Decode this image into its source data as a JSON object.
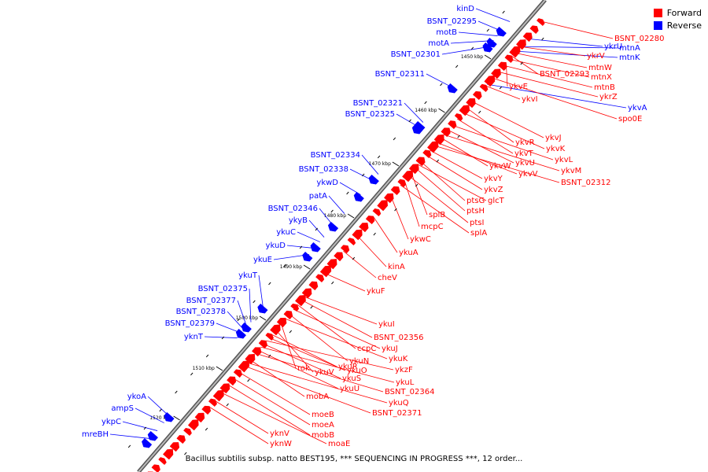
{
  "legend": {
    "forward_label": "Forward",
    "reverse_label": "Reverse",
    "forward_color": "#ff0000",
    "reverse_color": "#0000ff"
  },
  "caption": "Bacillus subtilis subsp. natto BEST195, *** SEQUENCING IN PROGRESS ***, 12 order...",
  "axis_ticks": [
    "1450 kbp",
    "1460 kbp",
    "1470 kbp",
    "1480 kbp",
    "1490 kbp",
    "1500 kbp",
    "1510 kbp",
    "1520 kbp"
  ],
  "reverse_genes": [
    "kinD",
    "BSNT_02295",
    "motB",
    "motA",
    "BSNT_02301",
    "BSNT_02311",
    "BSNT_02321",
    "BSNT_02325",
    "BSNT_02334",
    "BSNT_02338",
    "ykwD",
    "patA",
    "BSNT_02346",
    "ykyB",
    "ykuC",
    "ykuD",
    "ykuE",
    "ykuT",
    "BSNT_02375",
    "BSNT_02377",
    "BSNT_02378",
    "BSNT_02379",
    "yknT",
    "ykoA",
    "ampS",
    "ykpC",
    "mreBH",
    "ykrU",
    "mtnA",
    "mtnK",
    "ykvA"
  ],
  "forward_genes": [
    "BSNT_02280",
    "ykrV",
    "mtnW",
    "BSNT_02293",
    "mtnX",
    "mtnB",
    "ykrZ",
    "spo0E",
    "ykvE",
    "ykvI",
    "ykvJ",
    "ykvR",
    "ykvK",
    "ykvT",
    "ykvL",
    "ykvU",
    "ykvM",
    "ykvW",
    "ykvV",
    "BSNT_02312",
    "ykvY",
    "ykvZ",
    "ptsG",
    "glcT",
    "ptsH",
    "splB",
    "mcpC",
    "ptsI",
    "splA",
    "ykwC",
    "ykuA",
    "kinA",
    "cheV",
    "ykuF",
    "ykuI",
    "BSNT_02356",
    "ccpC",
    "ykuJ",
    "ykuN",
    "ykuK",
    "rok",
    "ykuV",
    "ykuR",
    "ykuO",
    "ykzF",
    "ykuS",
    "ykuL",
    "ykuU",
    "BSNT_02364",
    "mobA",
    "ykuQ",
    "BSNT_02371",
    "moeB",
    "moeA",
    "mobB",
    "yknV",
    "yknW",
    "moaE"
  ]
}
